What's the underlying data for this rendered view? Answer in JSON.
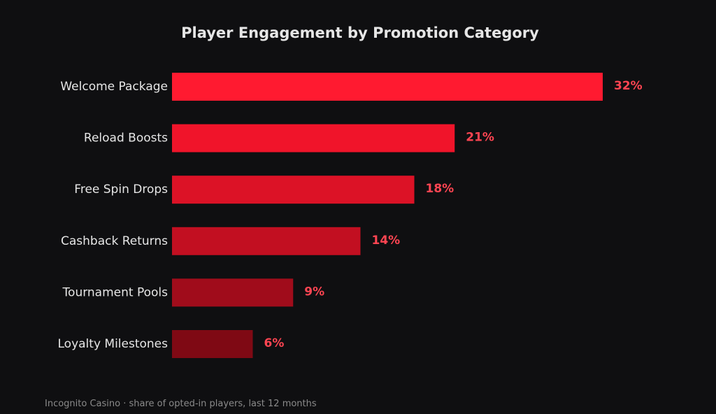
{
  "chart_data": {
    "type": "bar",
    "orientation": "horizontal",
    "title": "Player Engagement by Promotion Category",
    "categories": [
      "Welcome Package",
      "Reload Boosts",
      "Free Spin Drops",
      "Cashback Returns",
      "Tournament Pools",
      "Loyalty Milestones"
    ],
    "values": [
      32,
      21,
      18,
      14,
      9,
      6
    ],
    "value_labels": [
      "32%",
      "21%",
      "18%",
      "14%",
      "9%",
      "6%"
    ],
    "bar_colors": [
      "#ff1a30",
      "#f0142a",
      "#dc1226",
      "#c20f21",
      "#a00c1b",
      "#7f0914"
    ],
    "label_color": "#ff4552",
    "grid": false,
    "legend": "none"
  },
  "footnote": "Incognito Casino · share of opted-in players, last 12 months"
}
